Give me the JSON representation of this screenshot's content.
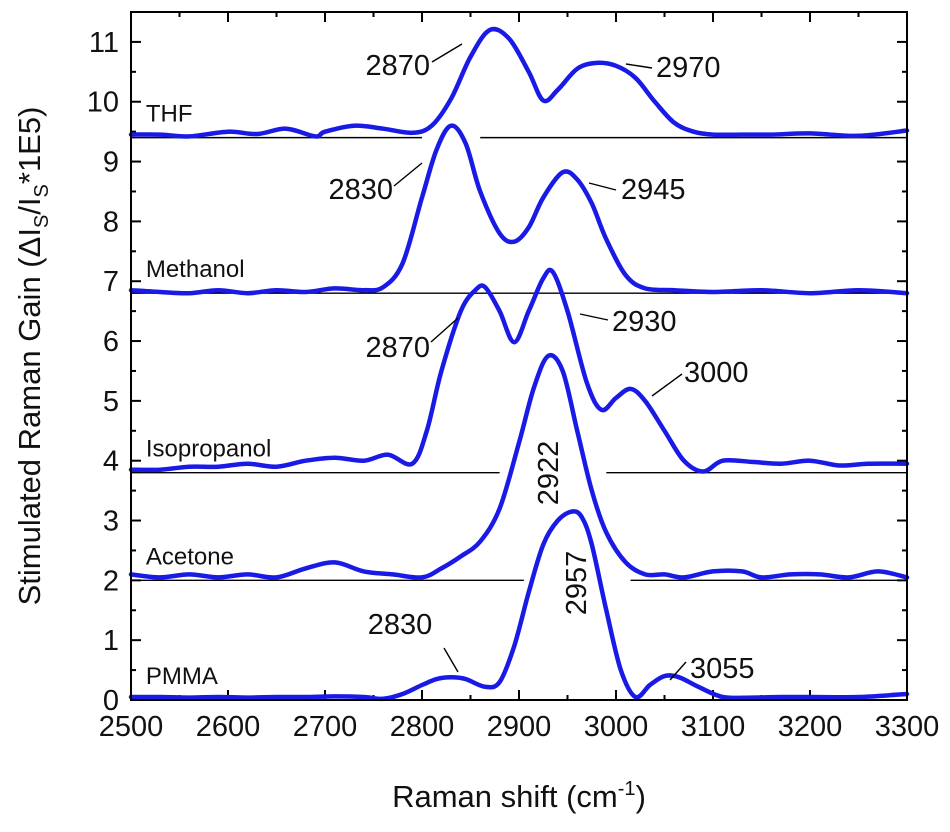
{
  "chart_data": {
    "type": "line",
    "xlabel": "Raman shift (cm",
    "xlabel_sup": "-1",
    "xlabel_end": ")",
    "ylabel_parts": [
      "Stimulated Raman Gain (",
      "ΔI",
      "S",
      "/I",
      "S",
      "*1E5)"
    ],
    "xlim": [
      2500,
      3300
    ],
    "ylim": [
      0,
      11.5
    ],
    "xticks": [
      "2500",
      "2600",
      "2700",
      "2800",
      "2900",
      "3000",
      "3100",
      "3200",
      "3300"
    ],
    "yticks": [
      "0",
      "1",
      "2",
      "3",
      "4",
      "5",
      "6",
      "7",
      "8",
      "9",
      "10",
      "11"
    ],
    "line_color": "#1a1ae6",
    "series": [
      {
        "name": "THF",
        "baseline": 9.4,
        "baseline_gap": [
          2800,
          2860
        ],
        "x": [
          2500,
          2530,
          2560,
          2600,
          2630,
          2660,
          2690,
          2700,
          2730,
          2760,
          2790,
          2810,
          2830,
          2850,
          2870,
          2890,
          2910,
          2925,
          2940,
          2960,
          2980,
          3000,
          3020,
          3040,
          3060,
          3080,
          3100,
          3130,
          3160,
          3200,
          3250,
          3300
        ],
        "y": [
          9.45,
          9.45,
          9.42,
          9.5,
          9.46,
          9.55,
          9.42,
          9.5,
          9.6,
          9.55,
          9.48,
          9.6,
          10.05,
          10.75,
          11.2,
          11.05,
          10.5,
          10.02,
          10.2,
          10.55,
          10.65,
          10.6,
          10.4,
          10.0,
          9.65,
          9.5,
          9.45,
          9.45,
          9.45,
          9.47,
          9.43,
          9.52
        ]
      },
      {
        "name": "Methanol",
        "baseline": 6.8,
        "x": [
          2500,
          2530,
          2560,
          2590,
          2620,
          2650,
          2680,
          2710,
          2740,
          2760,
          2780,
          2800,
          2815,
          2830,
          2845,
          2860,
          2880,
          2895,
          2910,
          2925,
          2945,
          2960,
          2975,
          2990,
          3010,
          3030,
          3060,
          3100,
          3150,
          3200,
          3250,
          3300
        ],
        "y": [
          6.85,
          6.82,
          6.8,
          6.85,
          6.8,
          6.85,
          6.82,
          6.88,
          6.85,
          6.9,
          7.3,
          8.4,
          9.2,
          9.6,
          9.3,
          8.5,
          7.8,
          7.66,
          7.9,
          8.4,
          8.82,
          8.7,
          8.3,
          7.7,
          7.1,
          6.88,
          6.85,
          6.82,
          6.85,
          6.8,
          6.85,
          6.8
        ]
      },
      {
        "name": "Isopropanol",
        "baseline": 3.8,
        "baseline_gap": [
          2880,
          2990
        ],
        "x": [
          2500,
          2530,
          2560,
          2590,
          2620,
          2650,
          2680,
          2710,
          2740,
          2765,
          2790,
          2805,
          2820,
          2840,
          2855,
          2865,
          2880,
          2895,
          2910,
          2925,
          2935,
          2950,
          2970,
          2985,
          3000,
          3015,
          3030,
          3050,
          3070,
          3090,
          3110,
          3140,
          3170,
          3200,
          3230,
          3260,
          3300
        ],
        "y": [
          3.85,
          3.85,
          3.9,
          3.9,
          3.95,
          3.9,
          4.0,
          4.05,
          4.0,
          4.1,
          3.95,
          4.5,
          5.5,
          6.5,
          6.85,
          6.9,
          6.5,
          5.98,
          6.5,
          7.05,
          7.15,
          6.5,
          5.3,
          4.85,
          5.05,
          5.2,
          5.0,
          4.5,
          4.0,
          3.82,
          4.0,
          3.98,
          3.95,
          4.0,
          3.92,
          3.95,
          3.95
        ]
      },
      {
        "name": "Acetone",
        "baseline": 2.0,
        "baseline_gap": [
          2905,
          3015
        ],
        "x": [
          2500,
          2530,
          2560,
          2590,
          2620,
          2650,
          2680,
          2710,
          2740,
          2770,
          2800,
          2820,
          2840,
          2860,
          2880,
          2900,
          2915,
          2930,
          2945,
          2960,
          2975,
          2990,
          3010,
          3030,
          3050,
          3070,
          3100,
          3130,
          3150,
          3180,
          3210,
          3240,
          3270,
          3300
        ],
        "y": [
          2.1,
          2.05,
          2.1,
          2.05,
          2.1,
          2.05,
          2.2,
          2.3,
          2.15,
          2.1,
          2.05,
          2.2,
          2.4,
          2.65,
          3.2,
          4.3,
          5.2,
          5.75,
          5.5,
          4.5,
          3.5,
          2.8,
          2.3,
          2.1,
          2.1,
          2.05,
          2.15,
          2.15,
          2.05,
          2.1,
          2.1,
          2.05,
          2.15,
          2.05
        ]
      },
      {
        "name": "PMMA",
        "baseline": 0,
        "x": [
          2500,
          2530,
          2560,
          2590,
          2620,
          2650,
          2680,
          2710,
          2740,
          2760,
          2780,
          2800,
          2815,
          2830,
          2845,
          2865,
          2880,
          2895,
          2910,
          2925,
          2940,
          2955,
          2965,
          2975,
          2990,
          3005,
          3020,
          3035,
          3050,
          3065,
          3085,
          3110,
          3140,
          3170,
          3200,
          3250,
          3300
        ],
        "y": [
          0.05,
          0.05,
          0.04,
          0.05,
          0.04,
          0.05,
          0.05,
          0.06,
          0.05,
          0.02,
          0.1,
          0.25,
          0.35,
          0.38,
          0.35,
          0.22,
          0.3,
          0.9,
          1.8,
          2.6,
          3.0,
          3.15,
          3.05,
          2.6,
          1.5,
          0.5,
          0.05,
          0.25,
          0.4,
          0.38,
          0.22,
          0.05,
          0.04,
          0.05,
          0.05,
          0.05,
          0.1
        ]
      }
    ],
    "annotations": [
      {
        "text": "2870",
        "x": 2870,
        "y": 11.2
      },
      {
        "text": "2970",
        "x": 2970,
        "y": 10.65
      },
      {
        "text": "2830",
        "x": 2830,
        "y": 9.6
      },
      {
        "text": "2945",
        "x": 2945,
        "y": 8.82
      },
      {
        "text": "2870",
        "x": 2863,
        "y": 6.9
      },
      {
        "text": "2930",
        "x": 2935,
        "y": 7.15
      },
      {
        "text": "3000",
        "x": 3015,
        "y": 5.2
      },
      {
        "text": "2922",
        "x": 2930,
        "y": 5.75
      },
      {
        "text": "2957",
        "x": 2955,
        "y": 3.15
      },
      {
        "text": "2830",
        "x": 2830,
        "y": 0.38
      },
      {
        "text": "3055",
        "x": 3050,
        "y": 0.4
      }
    ]
  }
}
